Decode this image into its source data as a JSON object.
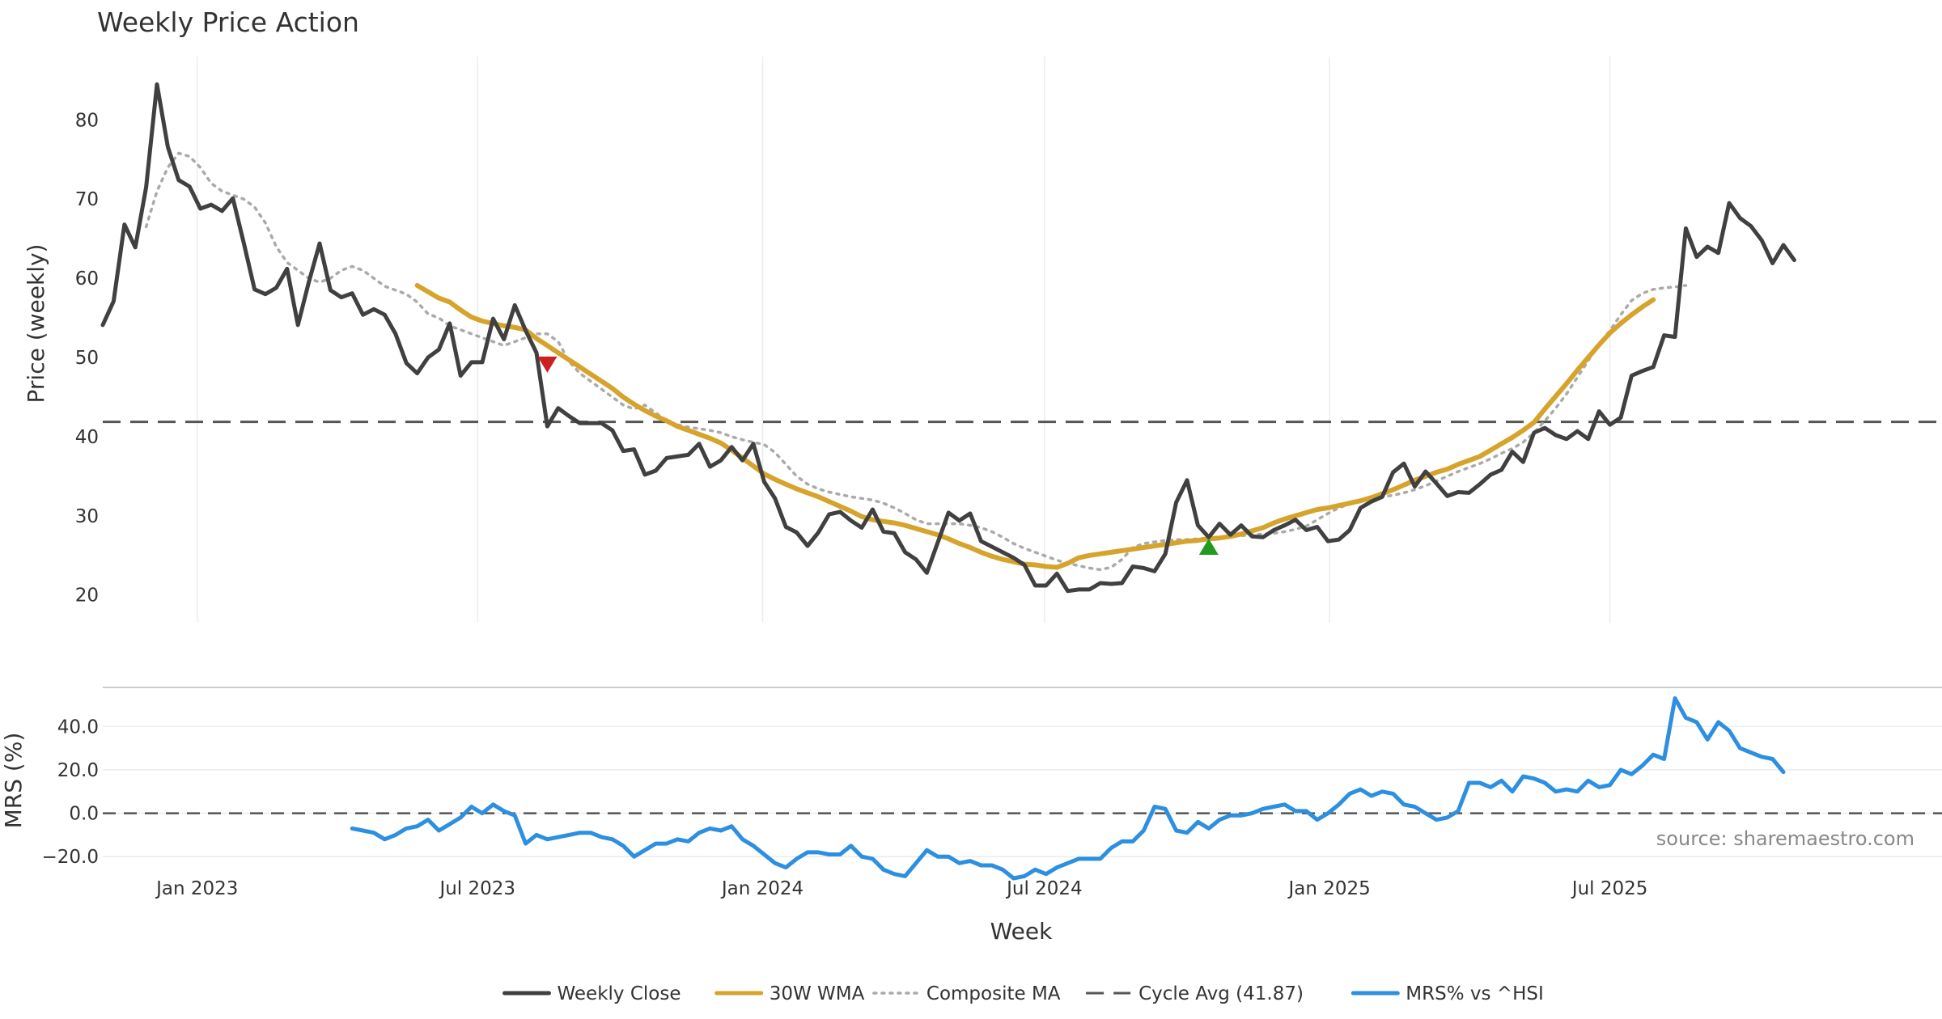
{
  "chart_data": [
    {
      "type": "line",
      "title": "Weekly Price Action",
      "xlabel": "",
      "ylabel": "Price (weekly)",
      "ylim": [
        16.5,
        88
      ],
      "yticks": [
        20,
        30,
        40,
        50,
        60,
        70,
        80
      ],
      "x_start": "2022-11-01",
      "x_step_days": 7,
      "grid": "x",
      "series": [
        {
          "name": "Weekly Close",
          "color": "#404040",
          "style": "solid",
          "values": [
            54.1,
            57.1,
            66.8,
            63.9,
            71.5,
            84.5,
            76.6,
            72.4,
            71.6,
            68.8,
            69.3,
            68.5,
            70.1,
            64.5,
            58.6,
            58.0,
            58.8,
            61.2,
            54.1,
            59.5,
            64.4,
            58.5,
            57.6,
            58.1,
            55.4,
            56.1,
            55.4,
            53.0,
            49.3,
            48.0,
            50.0,
            51.0,
            54.3,
            47.7,
            49.4,
            49.4,
            54.9,
            52.3,
            56.6,
            53.4,
            50.6,
            41.3,
            43.6,
            42.6,
            41.7,
            41.7,
            41.7,
            40.8,
            38.2,
            38.4,
            35.2,
            35.7,
            37.3,
            37.5,
            37.7,
            39.1,
            36.2,
            37.0,
            38.7,
            37.0,
            39.1,
            34.3,
            32.2,
            28.6,
            27.9,
            26.2,
            27.9,
            30.2,
            30.5,
            29.4,
            28.5,
            30.8,
            28.0,
            27.8,
            25.4,
            24.5,
            22.8,
            26.6,
            30.4,
            29.4,
            30.3,
            26.8,
            26.1,
            25.4,
            24.7,
            23.8,
            21.2,
            21.2,
            22.7,
            20.5,
            20.7,
            20.7,
            21.5,
            21.4,
            21.5,
            23.6,
            23.4,
            23.0,
            25.2,
            31.7,
            34.5,
            28.8,
            27.3,
            29.0,
            27.6,
            28.8,
            27.4,
            27.3,
            28.2,
            28.8,
            29.5,
            28.2,
            28.6,
            26.8,
            27.0,
            28.2,
            31.0,
            31.8,
            32.4,
            35.5,
            36.6,
            33.7,
            35.6,
            34.1,
            32.5,
            33.0,
            32.9,
            34.0,
            35.2,
            35.8,
            38.1,
            36.8,
            40.5,
            41.1,
            40.2,
            39.7,
            40.7,
            39.7,
            43.2,
            41.5,
            42.4,
            47.7,
            48.3,
            48.8,
            52.8,
            52.6,
            66.3,
            62.7,
            64.0,
            63.2,
            69.5,
            67.6,
            66.6,
            64.8,
            61.9,
            64.2,
            62.3
          ]
        },
        {
          "name": "30W WMA",
          "color": "#d6a42c",
          "style": "solid",
          "start_index": 29,
          "values": [
            59.1,
            58.3,
            57.5,
            57.0,
            56.0,
            55.1,
            54.6,
            54.3,
            54.0,
            53.8,
            53.5,
            52.4,
            51.5,
            50.6,
            49.7,
            48.8,
            47.9,
            47.0,
            46.1,
            45.0,
            44.1,
            43.3,
            42.6,
            42.0,
            41.3,
            40.8,
            40.3,
            39.8,
            39.2,
            38.3,
            37.3,
            36.3,
            35.3,
            34.6,
            34.0,
            33.4,
            32.9,
            32.4,
            31.8,
            31.2,
            30.6,
            29.9,
            29.5,
            29.3,
            29.1,
            28.8,
            28.4,
            28.0,
            27.6,
            27.1,
            26.5,
            26.0,
            25.4,
            24.9,
            24.5,
            24.2,
            23.9,
            23.8,
            23.6,
            23.5,
            24.0,
            24.7,
            25.0,
            25.2,
            25.4,
            25.6,
            25.8,
            26.0,
            26.2,
            26.4,
            26.6,
            26.8,
            26.9,
            27.1,
            27.2,
            27.4,
            27.7,
            28.1,
            28.5,
            29.1,
            29.6,
            30.0,
            30.4,
            30.8,
            31.0,
            31.3,
            31.6,
            31.9,
            32.3,
            32.8,
            33.3,
            33.9,
            34.5,
            35.0,
            35.5,
            35.9,
            36.5,
            37.0,
            37.5,
            38.3,
            39.1,
            39.9,
            40.8,
            41.8,
            43.5,
            45.1,
            46.7,
            48.4,
            50.0,
            51.6,
            53.1,
            54.3,
            55.4,
            56.4,
            57.3
          ]
        },
        {
          "name": "Composite MA",
          "color": "#aaaaaa",
          "style": "dotted",
          "start_index": 4,
          "values": [
            66.5,
            71.0,
            74.0,
            75.8,
            75.4,
            74.0,
            72.0,
            71.0,
            70.5,
            70.0,
            69.0,
            67.0,
            64.0,
            62.0,
            61.0,
            60.0,
            59.5,
            60.0,
            61.0,
            61.5,
            61.0,
            60.0,
            59.0,
            58.5,
            58.0,
            57.0,
            55.5,
            55.0,
            54.0,
            53.5,
            53.0,
            52.5,
            52.0,
            51.5,
            52.0,
            52.5,
            53.0,
            53.0,
            52.0,
            49.5,
            48.0,
            47.0,
            46.0,
            45.0,
            44.0,
            43.5,
            44.0,
            43.0,
            42.0,
            41.5,
            41.2,
            41.0,
            40.8,
            40.5,
            40.0,
            39.6,
            39.3,
            39.0,
            38.0,
            36.5,
            35.0,
            34.0,
            33.4,
            33.0,
            32.7,
            32.4,
            32.2,
            32.0,
            31.6,
            31.0,
            30.3,
            29.5,
            29.0,
            29.0,
            29.0,
            29.0,
            28.8,
            28.5,
            28.0,
            27.3,
            26.5,
            25.9,
            25.4,
            24.9,
            24.4,
            24.0,
            23.7,
            23.4,
            23.2,
            23.5,
            24.5,
            26.0,
            26.5,
            26.7,
            26.9,
            27.0,
            27.0,
            27.1,
            27.2,
            27.3,
            27.4,
            27.5,
            27.6,
            27.7,
            27.8,
            28.0,
            28.3,
            28.7,
            29.5,
            30.3,
            31.0,
            31.5,
            32.0,
            32.2,
            32.4,
            32.6,
            32.9,
            33.3,
            33.8,
            34.4,
            35.0,
            35.6,
            36.1,
            36.6,
            37.2,
            37.9,
            38.5,
            39.3,
            40.5,
            42.0,
            43.6,
            45.4,
            47.5,
            49.6,
            51.6,
            53.4,
            55.4,
            57.2,
            58.1,
            58.6,
            58.8,
            58.9,
            59.1
          ]
        },
        {
          "name": "Cycle Avg (41.87)",
          "color": "#555555",
          "style": "dashed",
          "value": 41.87
        }
      ],
      "markers": [
        {
          "type": "sell",
          "shape": "triangle-down",
          "color": "#cc1f1f",
          "index": 41,
          "value": 49.1
        },
        {
          "type": "buy",
          "shape": "triangle-up",
          "color": "#1f9c1f",
          "index": 102,
          "value": 26.1
        }
      ]
    },
    {
      "type": "line",
      "title": "",
      "xlabel": "Week",
      "ylabel": "MRS (%)",
      "ylim": [
        -27,
        58
      ],
      "yticks": [
        -20.0,
        0.0,
        20.0,
        40.0
      ],
      "ytick_labels": [
        "−20.0",
        "0.0",
        "20.0",
        "40.0"
      ],
      "xticks": [
        "Jan 2023",
        "Jul 2023",
        "Jan 2024",
        "Jul 2024",
        "Jan 2025",
        "Jul 2025"
      ],
      "xtick_dates": [
        "2023-01-01",
        "2023-07-01",
        "2024-01-01",
        "2024-07-01",
        "2025-01-01",
        "2025-07-01"
      ],
      "reference_line": 0,
      "series": [
        {
          "name": "MRS% vs ^HSI",
          "color": "#2d8fe0",
          "style": "solid",
          "start_index": 23,
          "values": [
            -7,
            -8,
            -9,
            -12,
            -10,
            -7,
            -6,
            -3,
            -8,
            -5,
            -2,
            3,
            0,
            4,
            1,
            -1,
            -14,
            -10,
            -12,
            -11,
            -10,
            -9,
            -9,
            -11,
            -12,
            -15,
            -20,
            -17,
            -14,
            -14,
            -12,
            -13,
            -9,
            -7,
            -8,
            -6,
            -12,
            -15,
            -19,
            -23,
            -25,
            -21,
            -18,
            -18,
            -19,
            -19,
            -15,
            -20,
            -21,
            -26,
            -28,
            -29,
            -23,
            -17,
            -20,
            -20,
            -23,
            -22,
            -24,
            -24,
            -26,
            -30,
            -29,
            -26,
            -28,
            -25,
            -23,
            -21,
            -21,
            -21,
            -16,
            -13,
            -13,
            -8,
            3,
            2,
            -8,
            -9,
            -4,
            -7,
            -3,
            -1,
            -1,
            0,
            2,
            3,
            4,
            1,
            1,
            -3,
            0,
            4,
            9,
            11,
            8,
            10,
            9,
            4,
            3,
            0,
            -3,
            -2,
            1,
            14,
            14,
            12,
            15,
            10,
            17,
            16,
            14,
            10,
            11,
            10,
            15,
            12,
            13,
            20,
            18,
            22,
            27,
            25,
            53,
            44,
            42,
            34,
            42,
            38,
            30,
            28,
            26,
            25,
            19
          ]
        }
      ],
      "annotations": [
        "source: sharemaestro.com"
      ]
    }
  ],
  "legend": {
    "items": [
      {
        "label": "Weekly Close",
        "color": "#404040",
        "style": "solid"
      },
      {
        "label": "30W WMA",
        "color": "#d6a42c",
        "style": "solid"
      },
      {
        "label": "Composite MA",
        "color": "#aaaaaa",
        "style": "dotted"
      },
      {
        "label": "Cycle Avg (41.87)",
        "color": "#555555",
        "style": "dashed"
      },
      {
        "label": "MRS% vs ^HSI",
        "color": "#2d8fe0",
        "style": "solid"
      }
    ]
  }
}
